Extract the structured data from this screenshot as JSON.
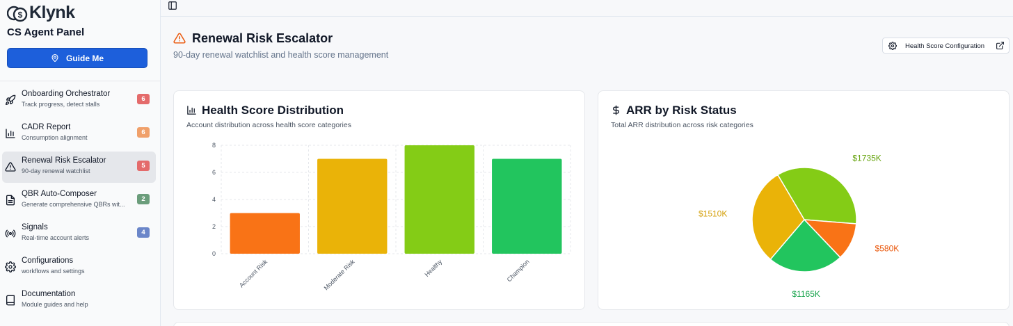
{
  "sidebar": {
    "brand": "Klynk",
    "panel_title": "CS Agent Panel",
    "guide_button": "Guide Me",
    "items": [
      {
        "title": "Onboarding Orchestrator",
        "subtitle": "Track progress, detect stalls",
        "badge": "6",
        "badge_color": "#e46b6b",
        "icon": "rocket-icon"
      },
      {
        "title": "CADR Report",
        "subtitle": "Consumption alignment",
        "badge": "6",
        "badge_color": "#f0a06a",
        "icon": "bar-chart-icon"
      },
      {
        "title": "Renewal Risk Escalator",
        "subtitle": "90-day renewal watchlist",
        "badge": "5",
        "badge_color": "#e46b6b",
        "icon": "warning-icon"
      },
      {
        "title": "QBR Auto-Composer",
        "subtitle": "Generate comprehensive QBRs wit...",
        "badge": "2",
        "badge_color": "#6b9d7b",
        "icon": "document-icon"
      },
      {
        "title": "Signals",
        "subtitle": "Real-time account alerts",
        "badge": "4",
        "badge_color": "#6b86c9",
        "icon": "broadcast-icon"
      },
      {
        "title": "Configurations",
        "subtitle": "workflows and settings",
        "badge": "",
        "badge_color": "",
        "icon": "gear-icon"
      },
      {
        "title": "Documentation",
        "subtitle": "Module guides and help",
        "badge": "",
        "badge_color": "",
        "icon": "book-icon"
      }
    ]
  },
  "header": {
    "title": "Renewal Risk Escalator",
    "subtitle": "90-day renewal watchlist and health score management",
    "config_button": "Health Score Configuration"
  },
  "health_card": {
    "title": "Health Score Distribution",
    "subtitle": "Account distribution across health score categories"
  },
  "arr_card": {
    "title": "ARR by Risk Status",
    "subtitle": "Total ARR distribution across risk categories"
  },
  "chart_data": [
    {
      "type": "bar",
      "categories": [
        "Account Risk",
        "Moderate Risk",
        "Healthy",
        "Champion"
      ],
      "values": [
        3,
        7,
        8,
        7
      ],
      "colors": [
        "#f97316",
        "#eab308",
        "#84cc16",
        "#22c55e"
      ],
      "yticks": [
        0,
        2,
        4,
        6,
        8
      ],
      "ylim": [
        0,
        8
      ],
      "grid": true
    },
    {
      "type": "pie",
      "labels": [
        "$1735K",
        "$580K",
        "$1165K",
        "$1510K"
      ],
      "values": [
        1735,
        580,
        1165,
        1510
      ],
      "colors": [
        "#84cc16",
        "#f97316",
        "#22c55e",
        "#eab308"
      ],
      "label_colors": [
        "#65a30d",
        "#ea580c",
        "#16a34a",
        "#d4a00a"
      ]
    }
  ]
}
